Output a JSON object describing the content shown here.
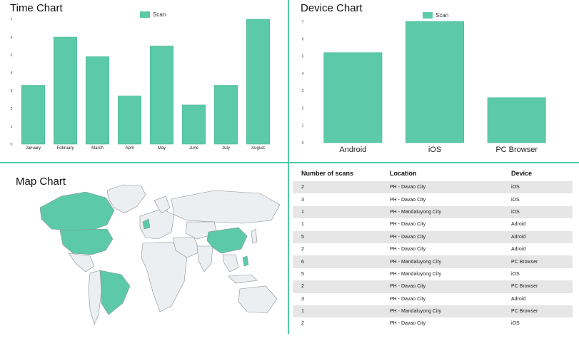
{
  "time_chart": {
    "title": "Time Chart",
    "legend": "Scan",
    "color": "#5ccaa8"
  },
  "device_chart": {
    "title": "Device Chart",
    "legend": "Scan",
    "color": "#5ccaa8"
  },
  "map_chart": {
    "title": "Map Chart",
    "highlight_color": "#5ccaa8",
    "base_color": "#eceff1"
  },
  "chart_data": [
    {
      "type": "bar",
      "title": "Time Chart",
      "categories": [
        "January",
        "February",
        "March",
        "April",
        "May",
        "June",
        "July",
        "August"
      ],
      "series": [
        {
          "name": "Scan",
          "values": [
            3.3,
            6.0,
            4.9,
            2.7,
            5.5,
            2.2,
            3.3,
            7.0
          ]
        }
      ],
      "ylim": [
        0,
        7
      ],
      "yticks": [
        0,
        1,
        2,
        3,
        4,
        5,
        6,
        7
      ],
      "legend": "top-center"
    },
    {
      "type": "bar",
      "title": "Device Chart",
      "categories": [
        "Android",
        "iOS",
        "PC Browser"
      ],
      "series": [
        {
          "name": "Scan",
          "values": [
            5.2,
            7.0,
            2.6
          ]
        }
      ],
      "ylim": [
        0,
        7
      ],
      "yticks": [
        0,
        1,
        2,
        3,
        4,
        5,
        6,
        7
      ],
      "legend": "top-center"
    },
    {
      "type": "table",
      "columns": [
        "Number of scans",
        "Location",
        "Device"
      ],
      "rows": [
        [
          "2",
          "PH - Davao City",
          "iOS"
        ],
        [
          "3",
          "PH - Davao City",
          "iOS"
        ],
        [
          "1",
          "PH - Mandaluyong City",
          "iOS"
        ],
        [
          "1",
          "PH - Davao City",
          "Adroid"
        ],
        [
          "5",
          "PH - Davao City",
          "Adroid"
        ],
        [
          "2",
          "PH - Davao City",
          "Adroid"
        ],
        [
          "6",
          "PH - Mandaluyong City",
          "PC Browser"
        ],
        [
          "5",
          "PH - Mandaluyong City",
          "iOS"
        ],
        [
          "2",
          "PH - Davao City",
          "PC Browser"
        ],
        [
          "3",
          "PH - Davao City",
          "Adroid"
        ],
        [
          "1",
          "PH - Mandaluyong City",
          "PC Browser"
        ],
        [
          "2",
          "PH - Davao City",
          "iOS"
        ]
      ]
    }
  ]
}
